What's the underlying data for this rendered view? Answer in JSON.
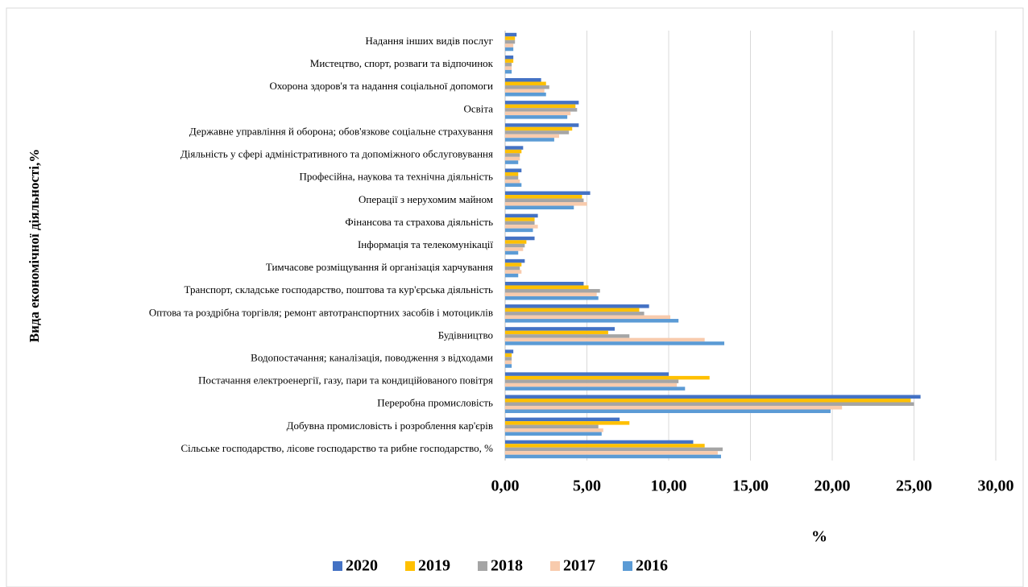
{
  "chart_data": {
    "type": "barh",
    "xlabel": "%",
    "ylabel": "Вида економічної діяльності,%",
    "categories": [
      "Сільське господарство, лісове господарство та рибне господарство, %",
      "Добувна промисловість і розроблення кар'єрів",
      "Переробна промисловість",
      "Постачання електроенергії, газу, пари та кондиційованого повітря",
      "Водопостачання; каналізація, поводження з відходами",
      "Будівництво",
      "Оптова та роздрібна торгівля; ремонт автотранспортних засобів і мотоциклів",
      "Транспорт, складське господарство, поштова та кур'єрська діяльність",
      "Тимчасове розміщування й організація харчування",
      "Інформація та телекомунікації",
      "Фінансова та страхова діяльність",
      "Операції з нерухомим майном",
      "Професійна, наукова та технічна діяльність",
      "Діяльність у сфері адміністративного та допоміжного обслуговування",
      "Державне управління й оборона; обов'язкове соціальне страхування",
      "Освіта",
      "Охорона здоров'я та надання соціальної допомоги",
      "Мистецтво, спорт, розваги та відпочинок",
      "Надання інших видів послуг"
    ],
    "series": [
      {
        "name": "2020",
        "color": "#4472c4",
        "values": [
          11.5,
          7.0,
          25.4,
          10.0,
          0.5,
          6.7,
          8.8,
          4.8,
          1.2,
          1.8,
          2.0,
          5.2,
          1.0,
          1.1,
          4.5,
          4.5,
          2.2,
          0.5,
          0.7
        ]
      },
      {
        "name": "2019",
        "color": "#ffc000",
        "values": [
          12.2,
          7.6,
          24.8,
          12.5,
          0.4,
          6.3,
          8.2,
          5.1,
          1.0,
          1.3,
          1.8,
          4.7,
          0.8,
          1.0,
          4.1,
          4.3,
          2.5,
          0.5,
          0.6
        ]
      },
      {
        "name": "2018",
        "color": "#a5a5a5",
        "values": [
          13.3,
          5.7,
          25.0,
          10.6,
          0.4,
          7.6,
          8.5,
          5.8,
          0.9,
          1.2,
          1.8,
          4.8,
          0.8,
          0.9,
          3.9,
          4.4,
          2.7,
          0.4,
          0.6
        ]
      },
      {
        "name": "2017",
        "color": "#f8cbad",
        "values": [
          13.0,
          6.0,
          20.6,
          10.5,
          0.4,
          12.2,
          10.1,
          5.6,
          1.0,
          1.1,
          2.0,
          5.0,
          0.9,
          0.9,
          3.3,
          4.0,
          2.4,
          0.4,
          0.5
        ]
      },
      {
        "name": "2016",
        "color": "#5b9bd5",
        "values": [
          13.2,
          5.9,
          19.9,
          11.0,
          0.4,
          13.4,
          10.6,
          5.7,
          0.8,
          0.8,
          1.7,
          4.2,
          1.0,
          0.8,
          3.0,
          3.8,
          2.5,
          0.4,
          0.5
        ]
      }
    ],
    "xlim": [
      0,
      30
    ],
    "xticks": [
      {
        "value": 0,
        "label": "0,00"
      },
      {
        "value": 5,
        "label": "5,00"
      },
      {
        "value": 10,
        "label": "10,00"
      },
      {
        "value": 15,
        "label": "15,00"
      },
      {
        "value": 20,
        "label": "20,00"
      },
      {
        "value": 25,
        "label": "25,00"
      },
      {
        "value": 30,
        "label": "30,00"
      }
    ],
    "grid": true,
    "legend": "bottom"
  }
}
